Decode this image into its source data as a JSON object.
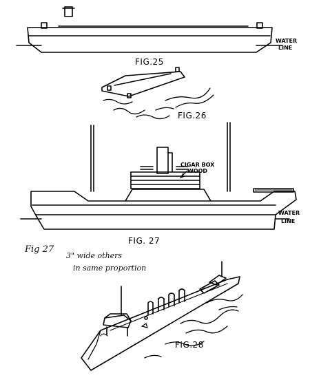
{
  "labels": {
    "fig25": "FIG.25",
    "fig26": "FIG.26",
    "fig27": "FIG. 27",
    "fig28": "FIG.28",
    "water": "WATER",
    "line": "LINE",
    "water2": "WATER",
    "line2": "LINE",
    "cigar1": "CIGAR BOX",
    "cigar2": "WOOD"
  },
  "handwritten": {
    "line1": "Fig 27",
    "line2": "3\" wide others",
    "line3": "in same proportion"
  }
}
